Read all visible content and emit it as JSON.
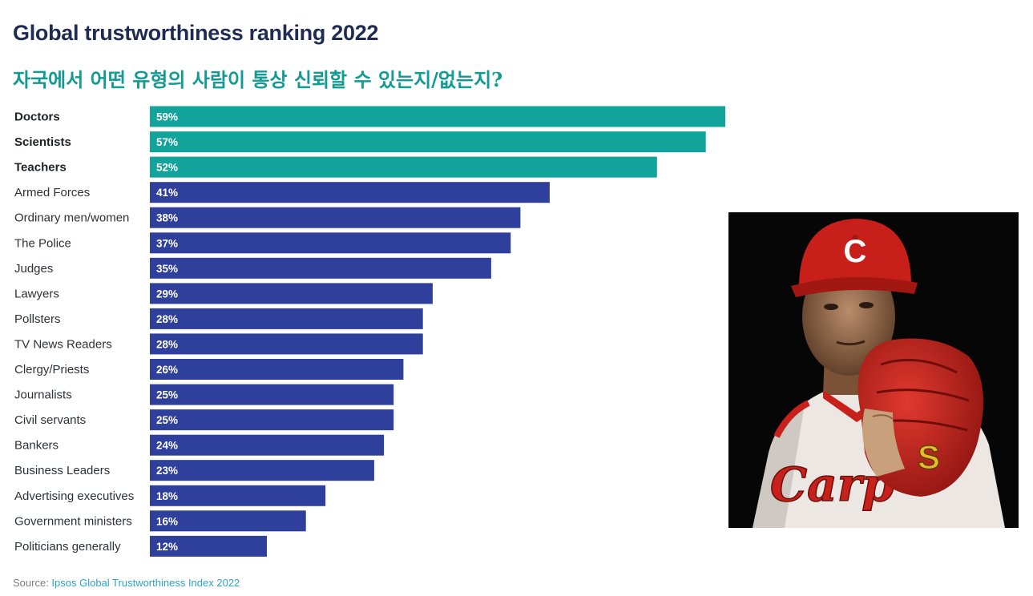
{
  "chart_data": {
    "type": "bar",
    "orientation": "horizontal",
    "title": "Global trustworthiness ranking 2022",
    "subtitle": "자국에서 어떤 유형의 사람이 통상 신뢰할 수 있는지/없는지?",
    "categories": [
      "Doctors",
      "Scientists",
      "Teachers",
      "Armed Forces",
      "Ordinary men/women",
      "The Police",
      "Judges",
      "Lawyers",
      "Pollsters",
      "TV News Readers",
      "Clergy/Priests",
      "Journalists",
      "Civil servants",
      "Bankers",
      "Business Leaders",
      "Advertising executives",
      "Government ministers",
      "Politicians generally"
    ],
    "values": [
      59,
      57,
      52,
      41,
      38,
      37,
      35,
      29,
      28,
      28,
      26,
      25,
      25,
      24,
      23,
      18,
      16,
      12
    ],
    "value_labels": [
      "59%",
      "57%",
      "52%",
      "41%",
      "38%",
      "37%",
      "35%",
      "29%",
      "28%",
      "28%",
      "26%",
      "25%",
      "25%",
      "24%",
      "23%",
      "18%",
      "16%",
      "12%"
    ],
    "highlighted_count": 3,
    "colors": {
      "highlight": "#12a39a",
      "default": "#2f3f9c"
    },
    "xlim": [
      0,
      59
    ],
    "grid": false,
    "legend": "none"
  },
  "source": {
    "prefix": "Source: ",
    "name": "Ipsos Global Trustworthiness Index 2022"
  },
  "photo": {
    "subject": "baseball pitcher holding red glove",
    "cap_logo": "C",
    "jersey_text": "Carp",
    "glove_logo": "S"
  }
}
